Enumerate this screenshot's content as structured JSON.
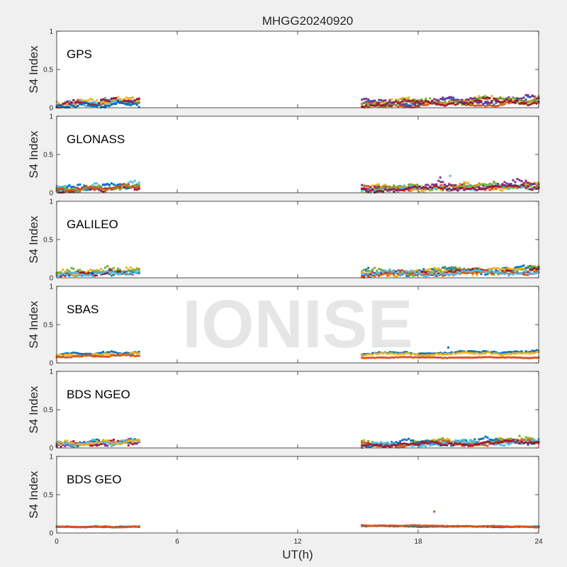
{
  "figure": {
    "title": "MHGG20240920",
    "xlabel": "UT(h)",
    "watermark": "IONISE",
    "background": "#f0f0f0",
    "axes_background": "#ffffff"
  },
  "chart_data": {
    "type": "scatter",
    "title": "MHGG20240920",
    "xlabel": "UT(h)",
    "ylabel": "S4 Index",
    "xlim": [
      0,
      24
    ],
    "ylim": [
      0,
      1
    ],
    "xticks": [
      0,
      6,
      12,
      18,
      24
    ],
    "yticks": [
      0,
      0.5,
      1
    ],
    "grid": false,
    "palette": [
      "#0072BD",
      "#D95319",
      "#EDB120",
      "#7E2F8E",
      "#77AC30",
      "#4DBEEE",
      "#A2142F"
    ],
    "panels": [
      {
        "label": "GPS",
        "segments": [
          {
            "x": [
              0,
              4.1
            ],
            "bands": [
              [
                0,
                0.03,
                0.08,
                0.07,
                0.16
              ],
              [
                1,
                0.04,
                0.09,
                0.07,
                0.17
              ],
              [
                2,
                0.05,
                0.12,
                0.08,
                0.18
              ],
              [
                5,
                0.04,
                0.1,
                0.07,
                0.14
              ],
              [
                6,
                0.04,
                0.11,
                0.07,
                0.16
              ],
              [
                0,
                0.02,
                0.05,
                0.06,
                0.1
              ]
            ]
          },
          {
            "x": [
              15.2,
              24
            ],
            "bands": [
              [
                0,
                0.05,
                0.1,
                0.08,
                0.16
              ],
              [
                1,
                0.03,
                0.06,
                0.06,
                0.1
              ],
              [
                2,
                0.06,
                0.12,
                0.09,
                0.17
              ],
              [
                3,
                0.06,
                0.12,
                0.09,
                0.17
              ],
              [
                4,
                0.05,
                0.11,
                0.09,
                0.17
              ],
              [
                6,
                0.05,
                0.09,
                0.07,
                0.14
              ]
            ]
          }
        ],
        "outliers": []
      },
      {
        "label": "GLONASS",
        "segments": [
          {
            "x": [
              0,
              4.1
            ],
            "bands": [
              [
                5,
                0.04,
                0.12,
                0.08,
                0.22
              ],
              [
                6,
                0.03,
                0.07,
                0.06,
                0.12
              ],
              [
                0,
                0.05,
                0.11,
                0.08,
                0.19
              ],
              [
                4,
                0.04,
                0.08,
                0.06,
                0.13
              ],
              [
                1,
                0.04,
                0.08,
                0.06,
                0.13
              ]
            ]
          },
          {
            "x": [
              15.2,
              24
            ],
            "bands": [
              [
                1,
                0.05,
                0.09,
                0.06,
                0.24
              ],
              [
                2,
                0.05,
                0.1,
                0.08,
                0.18
              ],
              [
                3,
                0.06,
                0.12,
                0.09,
                0.18
              ],
              [
                4,
                0.05,
                0.1,
                0.08,
                0.16
              ],
              [
                5,
                0.04,
                0.08,
                0.06,
                0.14
              ],
              [
                6,
                0.04,
                0.08,
                0.06,
                0.12
              ]
            ]
          }
        ],
        "outliers": [
          [
            19.1,
            0.2,
            3
          ],
          [
            19.6,
            0.22,
            5
          ]
        ]
      },
      {
        "label": "GALILEO",
        "segments": [
          {
            "x": [
              0,
              4.1
            ],
            "bands": [
              [
                0,
                0.04,
                0.07,
                0.05,
                0.11
              ],
              [
                2,
                0.06,
                0.1,
                0.07,
                0.18
              ],
              [
                4,
                0.06,
                0.11,
                0.08,
                0.16
              ],
              [
                6,
                0.04,
                0.08,
                0.05,
                0.12
              ],
              [
                5,
                0.04,
                0.07,
                0.05,
                0.1
              ]
            ]
          },
          {
            "x": [
              15.2,
              24
            ],
            "bands": [
              [
                0,
                0.07,
                0.11,
                0.08,
                0.16
              ],
              [
                4,
                0.07,
                0.11,
                0.08,
                0.15
              ],
              [
                2,
                0.06,
                0.1,
                0.07,
                0.14
              ],
              [
                6,
                0.05,
                0.1,
                0.06,
                0.22
              ],
              [
                1,
                0.04,
                0.07,
                0.05,
                0.1
              ],
              [
                5,
                0.05,
                0.08,
                0.06,
                0.12
              ]
            ]
          }
        ],
        "outliers": []
      },
      {
        "label": "SBAS",
        "segments": [
          {
            "x": [
              0,
              4.1
            ],
            "bands": [
              [
                0,
                0.11,
                0.14,
                0.03,
                0.17
              ],
              [
                2,
                0.09,
                0.12,
                0.03,
                0.15
              ],
              [
                1,
                0.08,
                0.1,
                0.02,
                0.12
              ]
            ]
          },
          {
            "x": [
              15.2,
              24
            ],
            "bands": [
              [
                0,
                0.12,
                0.15,
                0.03,
                0.19
              ],
              [
                2,
                0.11,
                0.13,
                0.03,
                0.16
              ],
              [
                1,
                0.07,
                0.07,
                0.01,
                0.09
              ]
            ]
          }
        ],
        "outliers": [
          [
            19.5,
            0.2,
            0
          ]
        ]
      },
      {
        "label": "BDS NGEO",
        "segments": [
          {
            "x": [
              0,
              4.1
            ],
            "bands": [
              [
                6,
                0.04,
                0.08,
                0.06,
                0.14
              ],
              [
                3,
                0.04,
                0.08,
                0.06,
                0.12
              ],
              [
                0,
                0.05,
                0.09,
                0.06,
                0.14
              ],
              [
                5,
                0.05,
                0.09,
                0.06,
                0.15
              ],
              [
                2,
                0.05,
                0.08,
                0.06,
                0.12
              ]
            ]
          },
          {
            "x": [
              15.2,
              24
            ],
            "bands": [
              [
                2,
                0.05,
                0.1,
                0.08,
                0.2
              ],
              [
                4,
                0.05,
                0.1,
                0.08,
                0.2
              ],
              [
                1,
                0.04,
                0.07,
                0.06,
                0.12
              ],
              [
                0,
                0.05,
                0.1,
                0.08,
                0.18
              ],
              [
                5,
                0.04,
                0.08,
                0.06,
                0.14
              ],
              [
                6,
                0.04,
                0.07,
                0.05,
                0.1
              ]
            ]
          }
        ],
        "outliers": []
      },
      {
        "label": "BDS GEO",
        "segments": [
          {
            "x": [
              0,
              4.1
            ],
            "bands": [
              [
                0,
                0.08,
                0.08,
                0.01,
                0.1
              ],
              [
                1,
                0.08,
                0.08,
                0.01,
                0.1
              ]
            ]
          },
          {
            "x": [
              15.2,
              24
            ],
            "bands": [
              [
                0,
                0.09,
                0.08,
                0.01,
                0.1
              ],
              [
                1,
                0.1,
                0.08,
                0.01,
                0.11
              ]
            ]
          }
        ],
        "outliers": [
          [
            18.8,
            0.28,
            1
          ]
        ]
      }
    ]
  }
}
